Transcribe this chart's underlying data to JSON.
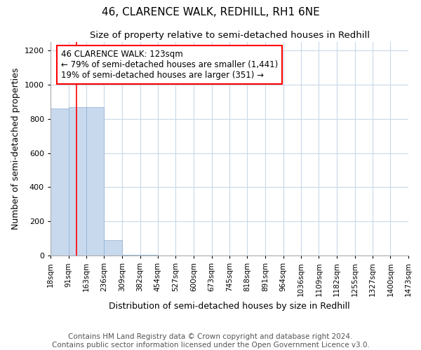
{
  "title": "46, CLARENCE WALK, REDHILL, RH1 6NE",
  "subtitle": "Size of property relative to semi-detached houses in Redhill",
  "xlabel": "Distribution of semi-detached houses by size in Redhill",
  "ylabel": "Number of semi-detached properties",
  "bar_edges": [
    18,
    91,
    163,
    236,
    309,
    382,
    454,
    527,
    600,
    673,
    745,
    818,
    891,
    964,
    1036,
    1109,
    1182,
    1255,
    1327,
    1400,
    1473
  ],
  "bar_heights": [
    860,
    868,
    868,
    90,
    5,
    3,
    2,
    2,
    2,
    2,
    1,
    1,
    1,
    1,
    1,
    1,
    1,
    1,
    1,
    1
  ],
  "bar_color": "#c8d9ee",
  "bar_edge_color": "#8ab0d4",
  "property_line_x": 123,
  "property_line_color": "red",
  "annotation_text": "46 CLARENCE WALK: 123sqm\n← 79% of semi-detached houses are smaller (1,441)\n19% of semi-detached houses are larger (351) →",
  "annotation_box_color": "red",
  "annotation_text_color": "black",
  "ylim": [
    0,
    1250
  ],
  "yticks": [
    0,
    200,
    400,
    600,
    800,
    1000,
    1200
  ],
  "tick_labels": [
    "18sqm",
    "91sqm",
    "163sqm",
    "236sqm",
    "309sqm",
    "382sqm",
    "454sqm",
    "527sqm",
    "600sqm",
    "673sqm",
    "745sqm",
    "818sqm",
    "891sqm",
    "964sqm",
    "1036sqm",
    "1109sqm",
    "1182sqm",
    "1255sqm",
    "1327sqm",
    "1400sqm",
    "1473sqm"
  ],
  "footer_line1": "Contains HM Land Registry data © Crown copyright and database right 2024.",
  "footer_line2": "Contains public sector information licensed under the Open Government Licence v3.0.",
  "bg_color": "#ffffff",
  "grid_color": "#c8d8e8",
  "title_fontsize": 11,
  "subtitle_fontsize": 9.5,
  "axis_label_fontsize": 9,
  "tick_fontsize": 7.5,
  "footer_fontsize": 7.5,
  "annotation_fontsize": 8.5
}
